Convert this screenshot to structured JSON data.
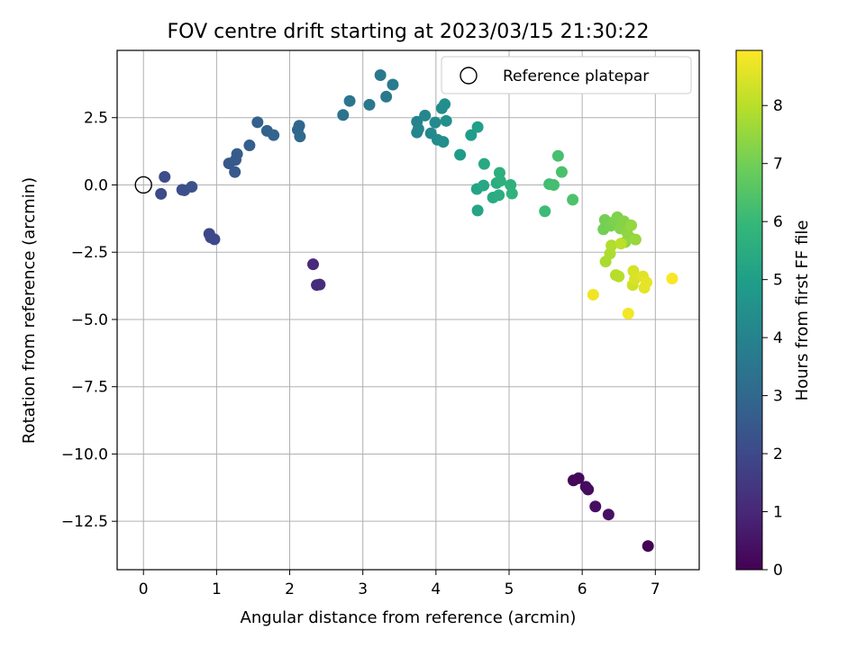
{
  "chart_data": {
    "type": "scatter",
    "title": "FOV centre drift starting at 2023/03/15 21:30:22",
    "xlabel": "Angular distance from reference (arcmin)",
    "ylabel": "Rotation from reference (arcmin)",
    "xlim": [
      -0.36,
      7.6
    ],
    "ylim": [
      -14.3,
      5.0
    ],
    "xticks": [
      0,
      1,
      2,
      3,
      4,
      5,
      6,
      7
    ],
    "xtick_labels": [
      "0",
      "1",
      "2",
      "3",
      "4",
      "5",
      "6",
      "7"
    ],
    "yticks": [
      2.5,
      0.0,
      -2.5,
      -5.0,
      -7.5,
      -10.0,
      -12.5
    ],
    "ytick_labels": [
      "2.5",
      "0.0",
      "−2.5",
      "−5.0",
      "−7.5",
      "−10.0",
      "−12.5"
    ],
    "grid": true,
    "colormap": "viridis",
    "colorbar": {
      "label": "Hours from first FF file",
      "range": [
        0,
        8.95
      ],
      "ticks": [
        0,
        1,
        2,
        3,
        4,
        5,
        6,
        7,
        8
      ],
      "tick_labels": [
        "0",
        "1",
        "2",
        "3",
        "4",
        "5",
        "6",
        "7",
        "8"
      ]
    },
    "legend": {
      "placement": "top-right",
      "entries": [
        {
          "label": "Reference platepar",
          "marker": "open-circle"
        }
      ]
    },
    "reference_point": {
      "x": 0,
      "y": 0
    },
    "points": [
      {
        "x": 5.88,
        "y": -10.98,
        "c": 0.15
      },
      {
        "x": 5.95,
        "y": -10.9,
        "c": 0.2
      },
      {
        "x": 6.05,
        "y": -11.22,
        "c": 0.25
      },
      {
        "x": 6.08,
        "y": -11.32,
        "c": 0.3
      },
      {
        "x": 6.18,
        "y": -11.95,
        "c": 0.35
      },
      {
        "x": 6.36,
        "y": -12.25,
        "c": 0.4
      },
      {
        "x": 6.9,
        "y": -13.42,
        "c": 0.05
      },
      {
        "x": 2.32,
        "y": -2.95,
        "c": 1.05
      },
      {
        "x": 2.37,
        "y": -3.72,
        "c": 1.1
      },
      {
        "x": 2.41,
        "y": -3.7,
        "c": 1.15
      },
      {
        "x": 0.9,
        "y": -1.82,
        "c": 1.9
      },
      {
        "x": 0.92,
        "y": -1.95,
        "c": 1.95
      },
      {
        "x": 0.97,
        "y": -2.02,
        "c": 2.0
      },
      {
        "x": 0.24,
        "y": -0.33,
        "c": 2.05
      },
      {
        "x": 0.29,
        "y": 0.3,
        "c": 2.1
      },
      {
        "x": 0.53,
        "y": -0.18,
        "c": 2.15
      },
      {
        "x": 0.56,
        "y": -0.2,
        "c": 2.2
      },
      {
        "x": 0.66,
        "y": -0.07,
        "c": 2.25
      },
      {
        "x": 1.17,
        "y": 0.8,
        "c": 2.45
      },
      {
        "x": 1.25,
        "y": 0.48,
        "c": 2.5
      },
      {
        "x": 1.26,
        "y": 0.93,
        "c": 2.55
      },
      {
        "x": 1.28,
        "y": 1.15,
        "c": 2.6
      },
      {
        "x": 1.45,
        "y": 1.47,
        "c": 2.7
      },
      {
        "x": 1.56,
        "y": 2.33,
        "c": 2.75
      },
      {
        "x": 1.69,
        "y": 2.01,
        "c": 2.8
      },
      {
        "x": 1.78,
        "y": 1.85,
        "c": 2.85
      },
      {
        "x": 2.11,
        "y": 2.05,
        "c": 2.9
      },
      {
        "x": 2.13,
        "y": 2.2,
        "c": 2.95
      },
      {
        "x": 2.14,
        "y": 1.8,
        "c": 3.0
      },
      {
        "x": 2.73,
        "y": 2.6,
        "c": 3.4
      },
      {
        "x": 2.82,
        "y": 3.12,
        "c": 3.5
      },
      {
        "x": 3.09,
        "y": 2.98,
        "c": 3.55
      },
      {
        "x": 3.24,
        "y": 4.08,
        "c": 3.6
      },
      {
        "x": 3.32,
        "y": 3.28,
        "c": 3.65
      },
      {
        "x": 3.41,
        "y": 3.73,
        "c": 3.7
      },
      {
        "x": 3.74,
        "y": 2.35,
        "c": 4.0
      },
      {
        "x": 3.74,
        "y": 1.95,
        "c": 4.05
      },
      {
        "x": 3.76,
        "y": 2.08,
        "c": 4.1
      },
      {
        "x": 3.85,
        "y": 2.58,
        "c": 4.15
      },
      {
        "x": 3.93,
        "y": 1.92,
        "c": 4.2
      },
      {
        "x": 3.99,
        "y": 2.32,
        "c": 4.25
      },
      {
        "x": 4.02,
        "y": 1.68,
        "c": 4.3
      },
      {
        "x": 4.08,
        "y": 2.85,
        "c": 4.35
      },
      {
        "x": 4.1,
        "y": 1.6,
        "c": 4.4
      },
      {
        "x": 4.12,
        "y": 3.0,
        "c": 4.45
      },
      {
        "x": 4.14,
        "y": 2.38,
        "c": 4.5
      },
      {
        "x": 4.33,
        "y": 1.12,
        "c": 4.85
      },
      {
        "x": 4.48,
        "y": 1.85,
        "c": 4.95
      },
      {
        "x": 4.57,
        "y": 2.15,
        "c": 5.0
      },
      {
        "x": 4.56,
        "y": -0.15,
        "c": 5.2
      },
      {
        "x": 4.57,
        "y": -0.95,
        "c": 5.25
      },
      {
        "x": 4.65,
        "y": -0.02,
        "c": 5.35
      },
      {
        "x": 4.66,
        "y": 0.78,
        "c": 5.4
      },
      {
        "x": 4.78,
        "y": -0.47,
        "c": 5.45
      },
      {
        "x": 4.83,
        "y": 0.07,
        "c": 5.5
      },
      {
        "x": 4.86,
        "y": -0.38,
        "c": 5.55
      },
      {
        "x": 4.87,
        "y": 0.45,
        "c": 5.6
      },
      {
        "x": 4.88,
        "y": 0.15,
        "c": 5.65
      },
      {
        "x": 5.02,
        "y": 0.0,
        "c": 5.7
      },
      {
        "x": 5.04,
        "y": -0.32,
        "c": 5.75
      },
      {
        "x": 5.49,
        "y": -0.98,
        "c": 6.1
      },
      {
        "x": 5.55,
        "y": 0.03,
        "c": 6.2
      },
      {
        "x": 5.61,
        "y": 0.0,
        "c": 6.25
      },
      {
        "x": 5.67,
        "y": 1.08,
        "c": 6.3
      },
      {
        "x": 5.72,
        "y": 0.48,
        "c": 6.35
      },
      {
        "x": 5.87,
        "y": -0.55,
        "c": 6.4
      },
      {
        "x": 6.29,
        "y": -1.65,
        "c": 7.0
      },
      {
        "x": 6.31,
        "y": -1.3,
        "c": 7.05
      },
      {
        "x": 6.39,
        "y": -1.52,
        "c": 7.1
      },
      {
        "x": 6.43,
        "y": -1.38,
        "c": 7.15
      },
      {
        "x": 6.48,
        "y": -1.2,
        "c": 7.2
      },
      {
        "x": 6.52,
        "y": -1.62,
        "c": 7.25
      },
      {
        "x": 6.57,
        "y": -1.35,
        "c": 7.3
      },
      {
        "x": 6.59,
        "y": -2.12,
        "c": 7.35
      },
      {
        "x": 6.61,
        "y": -1.75,
        "c": 7.4
      },
      {
        "x": 6.65,
        "y": -1.95,
        "c": 7.45
      },
      {
        "x": 6.67,
        "y": -1.5,
        "c": 7.5
      },
      {
        "x": 6.73,
        "y": -2.03,
        "c": 7.55
      },
      {
        "x": 6.32,
        "y": -2.85,
        "c": 7.8
      },
      {
        "x": 6.38,
        "y": -2.55,
        "c": 7.85
      },
      {
        "x": 6.4,
        "y": -2.25,
        "c": 7.9
      },
      {
        "x": 6.46,
        "y": -3.35,
        "c": 7.95
      },
      {
        "x": 6.5,
        "y": -3.4,
        "c": 8.0
      },
      {
        "x": 6.53,
        "y": -2.18,
        "c": 8.05
      },
      {
        "x": 6.69,
        "y": -3.72,
        "c": 8.3
      },
      {
        "x": 6.7,
        "y": -3.2,
        "c": 8.4
      },
      {
        "x": 6.72,
        "y": -3.5,
        "c": 8.45
      },
      {
        "x": 6.83,
        "y": -3.4,
        "c": 8.55
      },
      {
        "x": 6.85,
        "y": -3.82,
        "c": 8.6
      },
      {
        "x": 6.88,
        "y": -3.62,
        "c": 8.65
      },
      {
        "x": 6.15,
        "y": -4.08,
        "c": 8.75
      },
      {
        "x": 6.63,
        "y": -4.78,
        "c": 8.8
      },
      {
        "x": 7.23,
        "y": -3.48,
        "c": 8.9
      }
    ]
  }
}
